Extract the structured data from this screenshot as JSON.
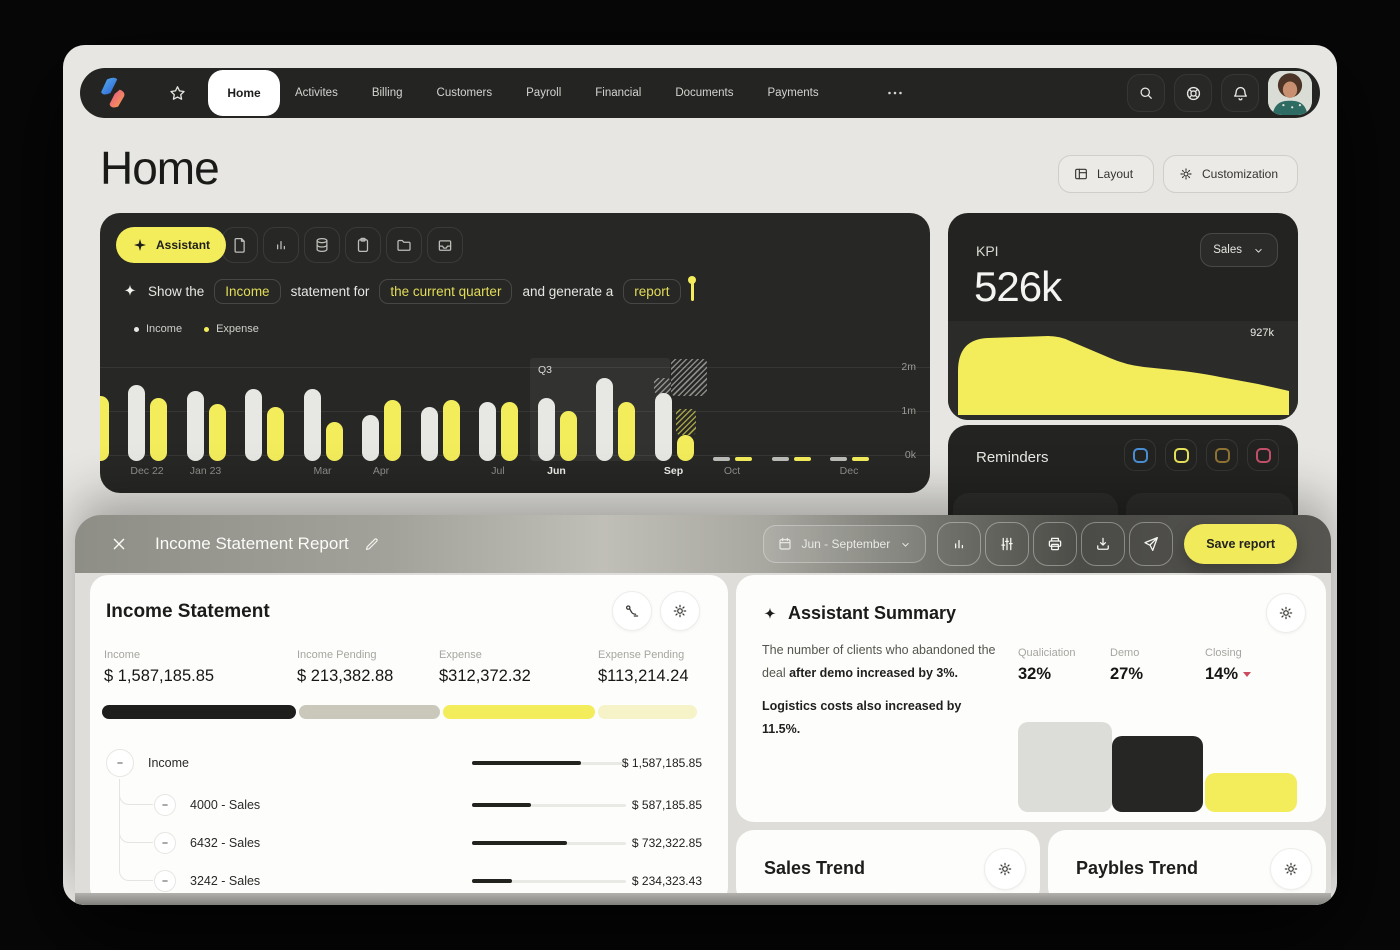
{
  "colors": {
    "accent": "#f3ed5c",
    "panel_dark": "#272725",
    "card_dark": "#232321",
    "income_bar": "#e7e7e3",
    "expense_bar": "#f3ed5c"
  },
  "nav": {
    "tabs": [
      {
        "label": "Home",
        "active": true
      },
      {
        "label": "Activites"
      },
      {
        "label": "Billing"
      },
      {
        "label": "Customers"
      },
      {
        "label": "Payroll"
      },
      {
        "label": "Financial"
      },
      {
        "label": "Documents"
      },
      {
        "label": "Payments"
      }
    ],
    "icons": [
      "favorites-star",
      "search",
      "support",
      "notifications",
      "avatar"
    ]
  },
  "page": {
    "title": "Home",
    "layout_button": "Layout",
    "customization_button": "Customization"
  },
  "assistant": {
    "button": "Assistant",
    "tools": [
      "document",
      "bar-chart",
      "database",
      "clipboard",
      "folder",
      "inbox"
    ],
    "prompt": {
      "segments": [
        {
          "text": "Show the",
          "highlight": false
        },
        {
          "text": "Income",
          "highlight": true
        },
        {
          "text": "statement for",
          "highlight": false
        },
        {
          "text": "the current quarter",
          "highlight": true
        },
        {
          "text": "and generate a",
          "highlight": false
        },
        {
          "text": "report",
          "highlight": true
        }
      ]
    },
    "legend": [
      {
        "label": "Income",
        "color": "#e7e7e3"
      },
      {
        "label": "Expense",
        "color": "#f3ed5c"
      }
    ]
  },
  "kpi": {
    "title": "KPI",
    "value": "526k",
    "selector": "Sales",
    "peak_label": "927k"
  },
  "reminders": {
    "title": "Reminders",
    "items": [
      {
        "name": "blue",
        "color": "#4a8fd6"
      },
      {
        "name": "yellow",
        "color": "#e8e25a"
      },
      {
        "name": "amber",
        "color": "#8f7434"
      },
      {
        "name": "red",
        "color": "#c4506a"
      }
    ]
  },
  "modal": {
    "title": "Income Statement Report",
    "date_range": "Jun - September",
    "actions": [
      "bar-chart",
      "filters",
      "print",
      "download",
      "send"
    ],
    "save_button": "Save report",
    "income_statement": {
      "title": "Income Statement",
      "header_icons": [
        "signature",
        "settings"
      ],
      "stats": [
        {
          "label": "Income",
          "value": "$ 1,587,185.85"
        },
        {
          "label": "Income Pending",
          "value": "$ 213,382.88"
        },
        {
          "label": "Expense",
          "value": "$312,372.32"
        },
        {
          "label": "Expense Pending",
          "value": "$113,214.24"
        }
      ],
      "segments": [
        {
          "pct": 33,
          "color": "#1e1e1c"
        },
        {
          "pct": 24,
          "color": "#c9c8ba"
        },
        {
          "pct": 26,
          "color": "#f3ed5c"
        },
        {
          "pct": 17,
          "color": "#f6f3c8"
        }
      ],
      "tree": [
        {
          "label": "Income",
          "value": "$ 1,587,185.85",
          "bar_pct": 71,
          "level": 0
        },
        {
          "label": "4000 - Sales",
          "value": "$ 587,185.85",
          "bar_pct": 38,
          "level": 1
        },
        {
          "label": "6432 - Sales",
          "value": "$ 732,322.85",
          "bar_pct": 62,
          "level": 1
        },
        {
          "label": "3242 - Sales",
          "value": "$ 234,323.43",
          "bar_pct": 26,
          "level": 1
        }
      ]
    },
    "summary": {
      "title": "Assistant Summary",
      "para1_normal": "The number of clients who abandoned the deal ",
      "para1_bold": "after demo increased by 3%.",
      "para2_bold": "Logistics costs also increased by 11.5%.",
      "stats": [
        {
          "label": "Qualiciation",
          "value": "32%"
        },
        {
          "label": "Demo",
          "value": "27%"
        },
        {
          "label": "Closing",
          "value": "14%",
          "trend": "down"
        }
      ]
    },
    "sales_trend": {
      "title": "Sales Trend"
    },
    "paybles_trend": {
      "title": "Paybles Trend"
    }
  },
  "chart_data": [
    {
      "type": "bar",
      "title": "Income vs Expense by month",
      "series": [
        "Income",
        "Expense"
      ],
      "unit": "millions",
      "y_ticks": [
        "2m",
        "1m",
        "0k"
      ],
      "ylim": [
        0,
        2
      ],
      "annotation": "Q3",
      "groups": [
        {
          "label": "",
          "income": null,
          "expense": 1.35
        },
        {
          "label": "Dec 22",
          "income": 1.6,
          "expense": 1.3
        },
        {
          "label": "Jan 23",
          "income": 1.45,
          "expense": 1.15
        },
        {
          "label": "",
          "income": 1.5,
          "expense": 1.1
        },
        {
          "label": "Mar",
          "income": 1.5,
          "expense": 0.75
        },
        {
          "label": "Apr",
          "income": 0.9,
          "expense": 1.25
        },
        {
          "label": "",
          "income": 1.1,
          "expense": 1.25
        },
        {
          "label": "Jul",
          "income": 1.2,
          "expense": 1.2
        },
        {
          "label": "Jun",
          "bold": true,
          "q3": true,
          "income": 1.3,
          "expense": 1.0
        },
        {
          "label": "",
          "q3": true,
          "income": 1.75,
          "expense": 1.2
        },
        {
          "label": "Sep",
          "bold": true,
          "q3": true,
          "income": 1.4,
          "expense": 0.45,
          "forecast_income": 2.0,
          "forecast_expense": 1.35
        },
        {
          "label": "Oct",
          "tiny": true,
          "income": 0.04,
          "expense": 0.04
        },
        {
          "label": "",
          "tiny": true,
          "income": 0.04,
          "expense": 0.04
        },
        {
          "label": "Dec",
          "tiny": true,
          "income": 0.04,
          "expense": 0.04
        }
      ]
    },
    {
      "type": "area",
      "metric": "KPI",
      "value": "526k",
      "series": "Sales",
      "peak_label": "927k",
      "points_norm": [
        [
          0,
          0.5
        ],
        [
          0.07,
          0.93
        ],
        [
          0.3,
          0.95
        ],
        [
          0.36,
          0.85
        ],
        [
          0.5,
          0.6
        ],
        [
          0.62,
          0.52
        ],
        [
          0.75,
          0.49
        ],
        [
          0.86,
          0.4
        ],
        [
          1,
          0.3
        ]
      ]
    },
    {
      "type": "bar",
      "subtype": "funnel",
      "categories": [
        "Qualiciation",
        "Demo",
        "Closing"
      ],
      "values": [
        32,
        27,
        14
      ],
      "colors": [
        "#dcdcd8",
        "#262624",
        "#f3ed5c"
      ]
    }
  ]
}
